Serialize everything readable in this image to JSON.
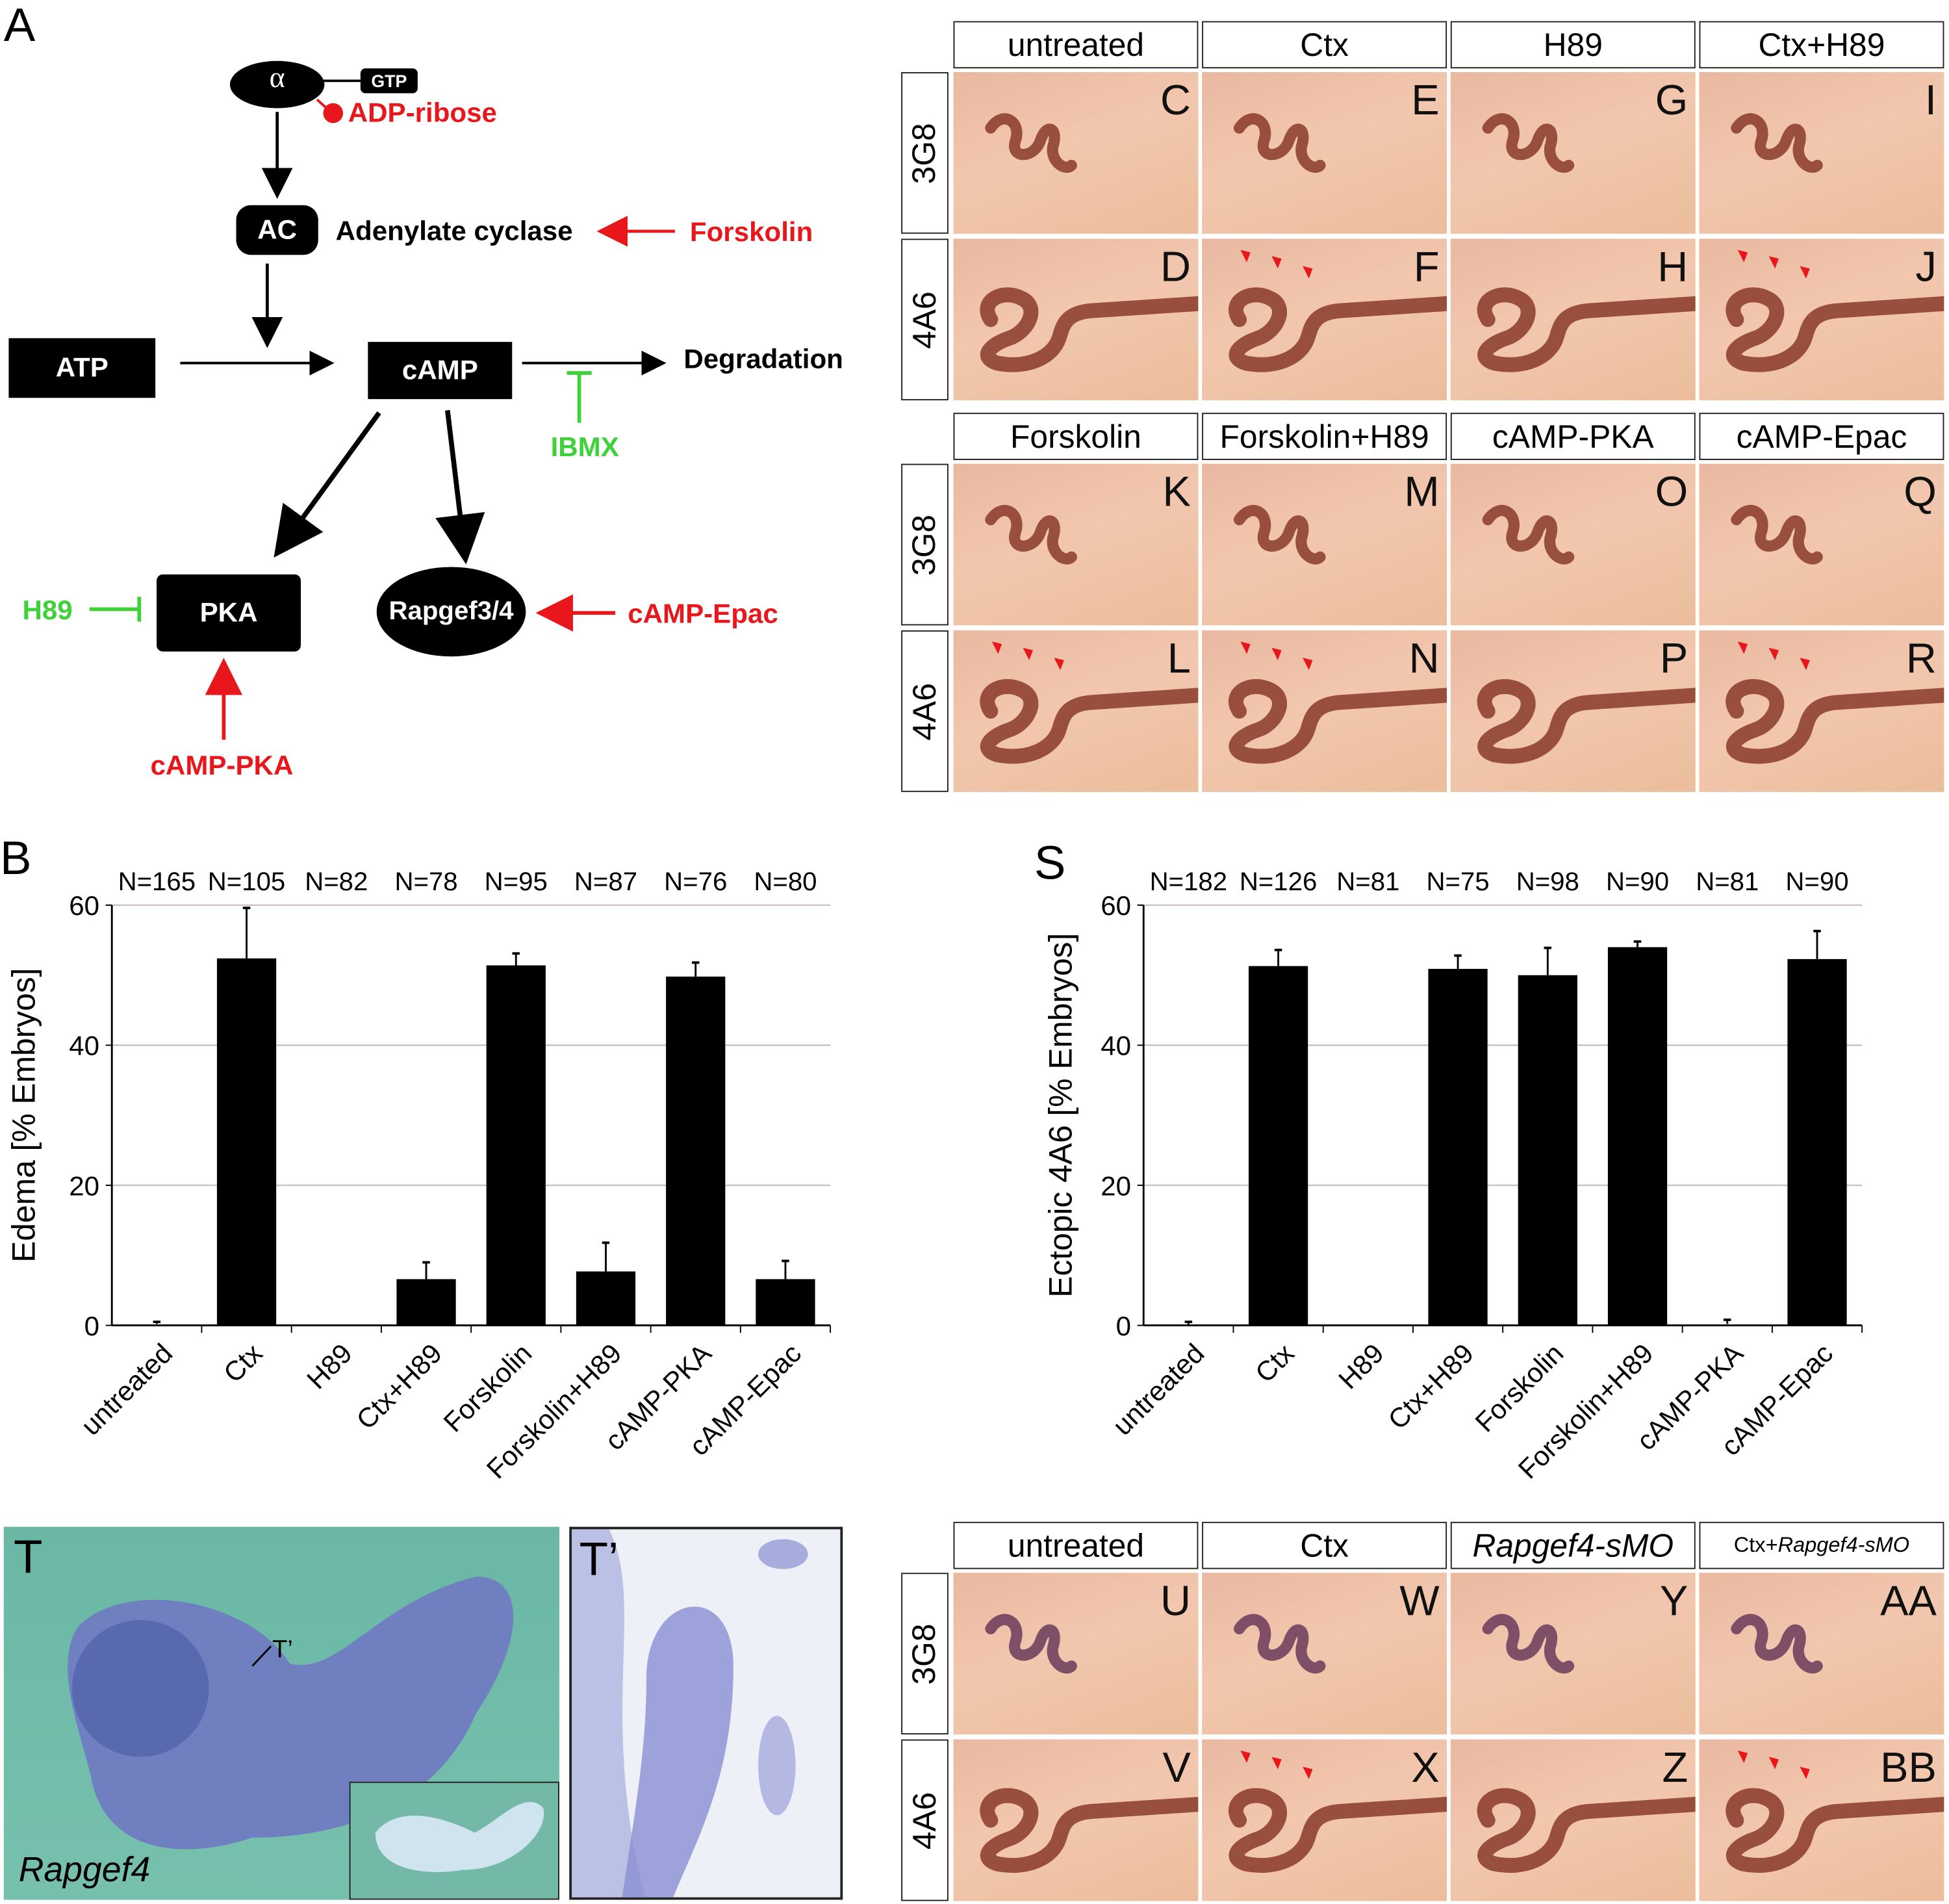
{
  "panel_letters": {
    "A": "A",
    "B": "B",
    "S": "S",
    "T": "T",
    "T_prime": "T’"
  },
  "diagram": {
    "alpha": "α",
    "gtp": "GTP",
    "adp_ribose": "ADP-ribose",
    "ac": "AC",
    "adenylate_cyclase": "Adenylate cyclase",
    "forskolin": "Forskolin",
    "atp": "ATP",
    "camp": "cAMP",
    "degradation": "Degradation",
    "ibmx": "IBMX",
    "pka": "PKA",
    "rapgef": "Rapgef3/4",
    "h89": "H89",
    "camp_epac": "cAMP-Epac",
    "camp_pka": "cAMP-PKA",
    "colors": {
      "activator": "#e8171c",
      "inhibitor": "#3ed13a"
    }
  },
  "grids": [
    {
      "headers": [
        "untreated",
        "Ctx",
        "H89",
        "Ctx+H89"
      ],
      "italic": [
        false,
        false,
        false,
        false
      ],
      "rows": [
        {
          "label": "3G8",
          "type": "3g8",
          "panels": [
            {
              "letter": "C",
              "arrows": false
            },
            {
              "letter": "E",
              "arrows": false
            },
            {
              "letter": "G",
              "arrows": false
            },
            {
              "letter": "I",
              "arrows": false
            }
          ]
        },
        {
          "label": "4A6",
          "type": "4a6",
          "panels": [
            {
              "letter": "D",
              "arrows": false
            },
            {
              "letter": "F",
              "arrows": true
            },
            {
              "letter": "H",
              "arrows": false
            },
            {
              "letter": "J",
              "arrows": true
            }
          ]
        }
      ]
    },
    {
      "headers": [
        "Forskolin",
        "Forskolin+H89",
        "cAMP-PKA",
        "cAMP-Epac"
      ],
      "italic": [
        false,
        false,
        false,
        false
      ],
      "rows": [
        {
          "label": "3G8",
          "type": "3g8",
          "panels": [
            {
              "letter": "K",
              "arrows": false
            },
            {
              "letter": "M",
              "arrows": false
            },
            {
              "letter": "O",
              "arrows": false
            },
            {
              "letter": "Q",
              "arrows": false
            }
          ]
        },
        {
          "label": "4A6",
          "type": "4a6",
          "panels": [
            {
              "letter": "L",
              "arrows": true
            },
            {
              "letter": "N",
              "arrows": true
            },
            {
              "letter": "P",
              "arrows": false
            },
            {
              "letter": "R",
              "arrows": true
            }
          ]
        }
      ]
    },
    {
      "headers": [
        "untreated",
        "Ctx",
        "Rapgef4-sMO",
        "Ctx+Rapgef4-sMO"
      ],
      "italic": [
        false,
        false,
        true,
        "partial"
      ],
      "rows": [
        {
          "label": "3G8",
          "type": "3g8",
          "panels": [
            {
              "letter": "U",
              "arrows": false
            },
            {
              "letter": "W",
              "arrows": false
            },
            {
              "letter": "Y",
              "arrows": false
            },
            {
              "letter": "AA",
              "arrows": false
            }
          ]
        },
        {
          "label": "4A6",
          "type": "4a6",
          "panels": [
            {
              "letter": "V",
              "arrows": false
            },
            {
              "letter": "X",
              "arrows": true
            },
            {
              "letter": "Z",
              "arrows": false
            },
            {
              "letter": "BB",
              "arrows": true
            }
          ]
        }
      ]
    }
  ],
  "t_panel": {
    "gene": "Rapgef4",
    "pointer": "T’"
  },
  "chart_data": [
    {
      "type": "bar",
      "panel": "B",
      "title": "",
      "ylabel": "Edema [% Embryos]",
      "xlabel": "",
      "ylim": [
        0,
        60
      ],
      "yticks": [
        0,
        20,
        40,
        60
      ],
      "grid": true,
      "categories": [
        "untreated",
        "Ctx",
        "H89",
        "Ctx+H89",
        "Forskolin",
        "Forskolin+H89",
        "cAMP-PKA",
        "cAMP-Epac"
      ],
      "n_labels": [
        "N=165",
        "N=105",
        "N=82",
        "N=78",
        "N=95",
        "N=87",
        "N=76",
        "N=80"
      ],
      "values": [
        0.2,
        52.4,
        0,
        6.6,
        51.4,
        7.7,
        49.8,
        6.6
      ],
      "error_upper": [
        0.3,
        7.2,
        0,
        2.4,
        1.7,
        4.1,
        2.0,
        2.6
      ]
    },
    {
      "type": "bar",
      "panel": "S",
      "title": "",
      "ylabel": "Ectopic 4A6 [% Embryos]",
      "xlabel": "",
      "ylim": [
        0,
        60
      ],
      "yticks": [
        0,
        20,
        40,
        60
      ],
      "grid": true,
      "categories": [
        "untreated",
        "Ctx",
        "H89",
        "Ctx+H89",
        "Forskolin",
        "Forskolin+H89",
        "cAMP-PKA",
        "cAMP-Epac"
      ],
      "n_labels": [
        "N=182",
        "N=126",
        "N=81",
        "N=75",
        "N=98",
        "N=90",
        "N=81",
        "N=90"
      ],
      "values": [
        0.1,
        51.3,
        0,
        50.9,
        50.0,
        54.0,
        0.2,
        52.3
      ],
      "error_upper": [
        0.4,
        2.3,
        0,
        1.9,
        3.9,
        0.8,
        0.6,
        4.0
      ]
    }
  ]
}
